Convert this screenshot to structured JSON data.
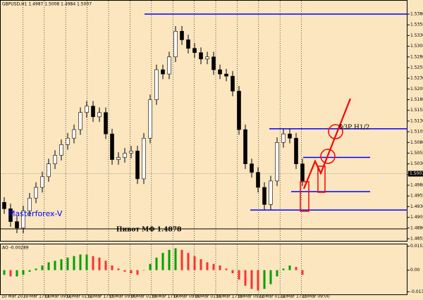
{
  "chart_data": {
    "type": "candlestick",
    "title": "GBPUSD,H1 1.4987 1.5008 1.4984 1.5007",
    "open": [
      1.494,
      1.4925,
      1.4895,
      1.488,
      1.492,
      1.495,
      1.4975,
      1.5,
      1.503,
      1.505,
      1.5075,
      1.509,
      1.511,
      1.515,
      1.5165,
      1.514,
      1.515,
      1.51,
      1.504,
      1.5045,
      1.5055,
      1.506,
      1.4995,
      1.509,
      1.518,
      1.525,
      1.524,
      1.528,
      1.534,
      1.532,
      1.53,
      1.529,
      1.5275,
      1.528,
      1.525,
      1.524,
      1.5235,
      1.52,
      1.511,
      1.503,
      1.501,
      1.4975,
      1.4935,
      1.499,
      1.508,
      1.51,
      1.509,
      1.503
    ],
    "high": [
      1.4952,
      1.4937,
      1.4907,
      1.4932,
      1.4962,
      1.4987,
      1.5012,
      1.5042,
      1.5062,
      1.5087,
      1.5102,
      1.5122,
      1.5162,
      1.5177,
      1.5177,
      1.5162,
      1.5162,
      1.5112,
      1.5057,
      1.5067,
      1.5072,
      1.5072,
      1.5102,
      1.5192,
      1.5262,
      1.5262,
      1.5292,
      1.5352,
      1.5352,
      1.5332,
      1.5312,
      1.5302,
      1.5292,
      1.5292,
      1.5262,
      1.5252,
      1.5247,
      1.5212,
      1.5122,
      1.5042,
      1.5022,
      1.4987,
      1.5002,
      1.5092,
      1.5112,
      1.5112,
      1.5102,
      1.5042
    ],
    "low": [
      1.4913,
      1.4883,
      1.4868,
      1.4868,
      1.4908,
      1.4938,
      1.4963,
      1.4988,
      1.5018,
      1.5038,
      1.5063,
      1.5078,
      1.5098,
      1.5138,
      1.5128,
      1.5128,
      1.5088,
      1.5028,
      1.5028,
      1.5033,
      1.5043,
      1.4983,
      1.4983,
      1.5078,
      1.5168,
      1.5228,
      1.5228,
      1.5268,
      1.5308,
      1.5288,
      1.5278,
      1.5263,
      1.5263,
      1.5238,
      1.5228,
      1.5223,
      1.5188,
      1.5098,
      1.5018,
      1.4998,
      1.4963,
      1.4923,
      1.4923,
      1.4978,
      1.5068,
      1.5078,
      1.5018,
      1.4978
    ],
    "close": [
      1.4925,
      1.4895,
      1.488,
      1.492,
      1.495,
      1.4975,
      1.5,
      1.503,
      1.505,
      1.5075,
      1.509,
      1.511,
      1.515,
      1.5165,
      1.514,
      1.515,
      1.51,
      1.504,
      1.5045,
      1.5055,
      1.506,
      1.4995,
      1.509,
      1.518,
      1.525,
      1.524,
      1.528,
      1.534,
      1.532,
      1.53,
      1.529,
      1.5275,
      1.528,
      1.525,
      1.524,
      1.5235,
      1.52,
      1.511,
      1.503,
      1.501,
      1.4975,
      1.4935,
      1.499,
      1.508,
      1.51,
      1.509,
      1.503,
      1.499
    ],
    "up_color": "#ffffff",
    "down_color": "#000000",
    "ylim": [
      1.485,
      1.5413
    ],
    "yticks": [
      1.4855,
      {
        "value": 1.488,
        "label": "1.4880"
      },
      1.4905,
      {
        "value": 1.493,
        "label": "1.4930"
      },
      1.4955,
      {
        "value": 1.498,
        "label": "1.4980"
      },
      1.5005,
      {
        "value": 1.503,
        "label": "1.5030"
      },
      1.5055,
      {
        "value": 1.508,
        "label": "1.5080"
      },
      1.5105,
      {
        "value": 1.513,
        "label": "1.5130"
      },
      1.5155,
      {
        "value": 1.518,
        "label": "1.5180"
      },
      1.5205,
      {
        "value": 1.523,
        "label": "1.5230"
      },
      1.5255,
      {
        "value": 1.528,
        "label": "1.5280"
      },
      1.5305,
      {
        "value": 1.533,
        "label": "1.5330"
      },
      1.5355,
      {
        "value": 1.538,
        "label": "1.5380"
      }
    ],
    "current_price": 1.5007,
    "time_labels": [
      "10 Mar 2010",
      "10 Mar 17:00",
      "11 Mar 09:00",
      "12 Mar 01:00",
      "12 Mar 17:00",
      "15 Mar 09:00",
      "16 Mar 01:00",
      "16 Mar 17:00",
      "17 Mar 09:00",
      "18 Mar 01:00",
      "18 Mar 17:00",
      "19 Mar 09:00",
      "22 Mar 01:00",
      "22 Mar 17:00",
      "23 Mar 09:00"
    ],
    "levels": [
      {
        "value": 1.538,
        "color": "#0000ff"
      },
      {
        "value": 1.5112,
        "color": "#0000ff"
      },
      {
        "value": 1.5045,
        "color": "#0000ff"
      },
      {
        "value": 1.4965,
        "color": "#0000ff"
      },
      {
        "value": 1.4922,
        "color": "#0000ff"
      },
      {
        "value": 1.4878,
        "color": "#000000"
      }
    ],
    "annotations": [
      "ФЗР H1/2",
      "Пивот МФ 1.4878",
      "Masterforex-V"
    ],
    "indicator": {
      "title": "AO -0.00289",
      "values": [
        -0.003,
        -0.004,
        -0.004,
        -0.003,
        -0.001,
        0.001,
        0.003,
        0.005,
        0.006,
        0.007,
        0.008,
        0.009,
        0.01,
        0.01,
        0.009,
        0.008,
        0.006,
        0.003,
        0.001,
        -0.001,
        -0.002,
        -0.003,
        0.0,
        0.004,
        0.008,
        0.011,
        0.013,
        0.014,
        0.013,
        0.011,
        0.009,
        0.007,
        0.005,
        0.004,
        0.003,
        0.001,
        -0.002,
        -0.006,
        -0.01,
        -0.012,
        -0.013,
        -0.012,
        -0.009,
        -0.004,
        0.001,
        0.003,
        0.002,
        -0.003
      ],
      "up_color": "#00a000",
      "down_color": "#ff3030",
      "ylim": [
        -0.0155,
        0.0165
      ],
      "yticks": [
        -0.01383,
        {
          "value": 0,
          "label": "0.00"
        },
        0.01531
      ]
    }
  }
}
